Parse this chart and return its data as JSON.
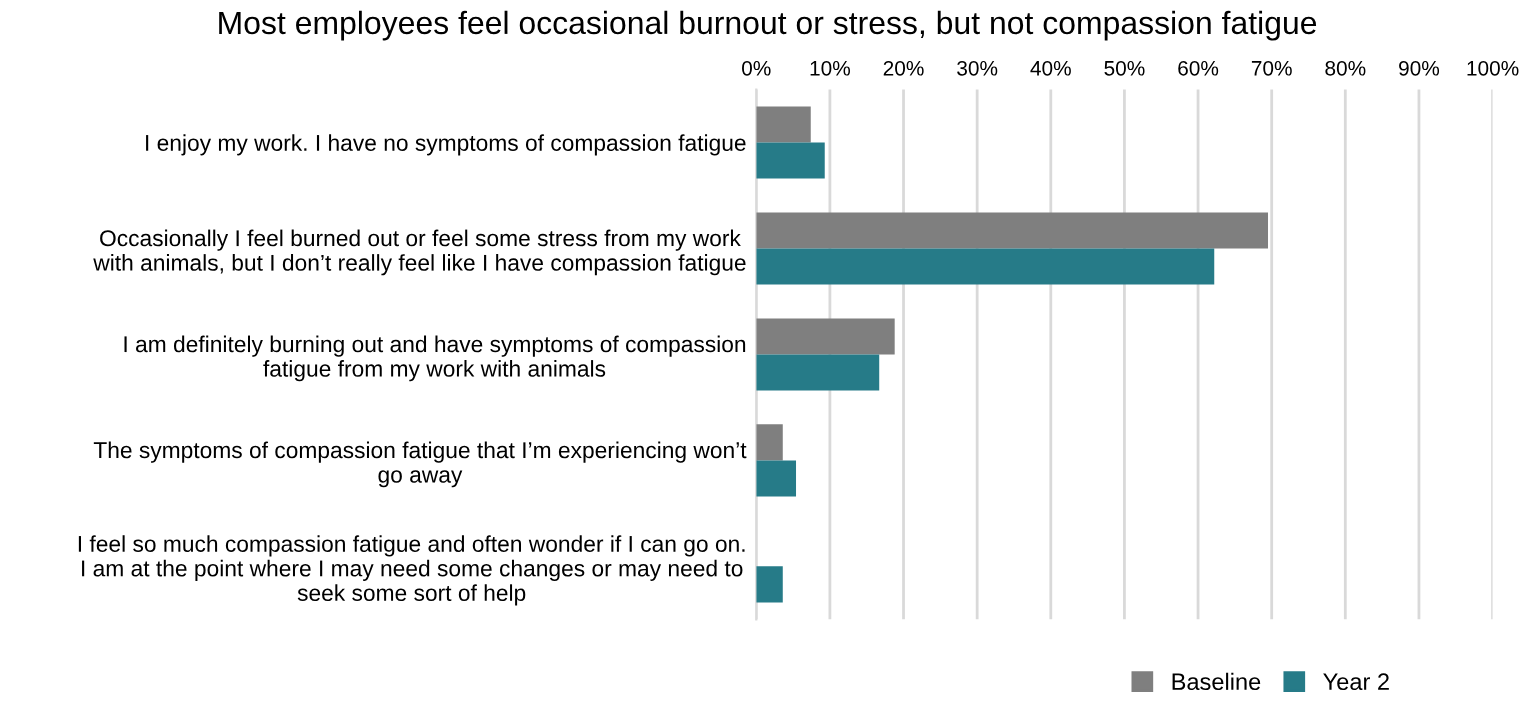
{
  "chart_data": {
    "type": "bar",
    "orientation": "horizontal",
    "title": "Most employees feel occasional burnout or stress, but not compassion fatigue",
    "categories": [
      "I enjoy my work. I have no symptoms of compassion fatigue",
      "Occasionally I feel burned out or feel some stress from my work\nwith animals, but I don’t really feel like I have compassion fatigue",
      "I am definitely burning out and have symptoms of compassion\nfatigue from my work with animals",
      "The symptoms of compassion fatigue that I’m experiencing won’t\ngo away",
      "I feel so much compassion fatigue and often wonder if I can go on.\nI am at the point where I may need some changes or may need to\nseek some sort of help"
    ],
    "series": [
      {
        "name": "Baseline",
        "color": "#7f7f7f",
        "values": [
          7.4,
          69.5,
          18.8,
          3.6,
          0
        ]
      },
      {
        "name": "Year 2",
        "color": "#267b88",
        "values": [
          9.3,
          62.2,
          16.7,
          5.4,
          3.6
        ]
      }
    ],
    "xlim": [
      0,
      100
    ],
    "xticks": [
      {
        "value": 0,
        "label": "0%"
      },
      {
        "value": 10,
        "label": "10%"
      },
      {
        "value": 20,
        "label": "20%"
      },
      {
        "value": 30,
        "label": "30%"
      },
      {
        "value": 40,
        "label": "40%"
      },
      {
        "value": 50,
        "label": "50%"
      },
      {
        "value": 60,
        "label": "60%"
      },
      {
        "value": 70,
        "label": "70%"
      },
      {
        "value": 80,
        "label": "80%"
      },
      {
        "value": 90,
        "label": "90%"
      },
      {
        "value": 100,
        "label": "100%"
      }
    ],
    "grid": "x",
    "legend": "bottom right"
  }
}
